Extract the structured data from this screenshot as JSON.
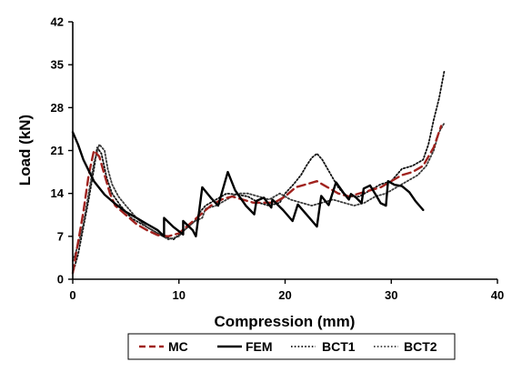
{
  "chart_data": {
    "type": "line",
    "title": "",
    "xlabel": "Compression (mm)",
    "ylabel": "Load (kN)",
    "xlim": [
      0,
      40
    ],
    "ylim": [
      0,
      42
    ],
    "xticks": [
      0,
      10,
      20,
      30,
      40
    ],
    "yticks": [
      0,
      7,
      14,
      21,
      28,
      35,
      42
    ],
    "grid": false,
    "legend": "bottom",
    "series": [
      {
        "name": "MC",
        "color": "#a0221e",
        "dash": "dashed",
        "points": [
          [
            0,
            1
          ],
          [
            0.5,
            6
          ],
          [
            1,
            11
          ],
          [
            1.5,
            17
          ],
          [
            2,
            21
          ],
          [
            2.5,
            20
          ],
          [
            3,
            17
          ],
          [
            3.5,
            14
          ],
          [
            4,
            12
          ],
          [
            5,
            10.5
          ],
          [
            6,
            9
          ],
          [
            7,
            8
          ],
          [
            8,
            7.2
          ],
          [
            9,
            7
          ],
          [
            10,
            7.5
          ],
          [
            11,
            9
          ],
          [
            12,
            10.5
          ],
          [
            13,
            12
          ],
          [
            14,
            13
          ],
          [
            15,
            13.5
          ],
          [
            16,
            13
          ],
          [
            17,
            12.5
          ],
          [
            18,
            12.5
          ],
          [
            19,
            12.5
          ],
          [
            20,
            13.5
          ],
          [
            21,
            15
          ],
          [
            22,
            15.5
          ],
          [
            23,
            16
          ],
          [
            24,
            15
          ],
          [
            25,
            14
          ],
          [
            26,
            13.5
          ],
          [
            27,
            14
          ],
          [
            28,
            14.5
          ],
          [
            29,
            15
          ],
          [
            30,
            16
          ],
          [
            31,
            17
          ],
          [
            32,
            17.5
          ],
          [
            33,
            18.5
          ],
          [
            34,
            21.5
          ],
          [
            34.7,
            25
          ]
        ]
      },
      {
        "name": "FEM",
        "color": "#000000",
        "dash": "solid",
        "points": [
          [
            0,
            24
          ],
          [
            0.5,
            22
          ],
          [
            1,
            19.5
          ],
          [
            2,
            16
          ],
          [
            3,
            13.8
          ],
          [
            4,
            12.3
          ],
          [
            5,
            11
          ],
          [
            6,
            10
          ],
          [
            7,
            9
          ],
          [
            8,
            8
          ],
          [
            8.6,
            7
          ],
          [
            8.6,
            10
          ],
          [
            9.5,
            8.5
          ],
          [
            10.4,
            7.3
          ],
          [
            10.4,
            9.5
          ],
          [
            11.3,
            8
          ],
          [
            11.6,
            7
          ],
          [
            12.2,
            15
          ],
          [
            13,
            13.3
          ],
          [
            13.7,
            12
          ],
          [
            14.6,
            17.5
          ],
          [
            15.3,
            14.5
          ],
          [
            16.3,
            12
          ],
          [
            17.1,
            10.6
          ],
          [
            17.3,
            12.8
          ],
          [
            18,
            13.3
          ],
          [
            18.7,
            11.7
          ],
          [
            18.8,
            13
          ],
          [
            19.8,
            11.3
          ],
          [
            20.7,
            9.5
          ],
          [
            21.2,
            12.2
          ],
          [
            22.2,
            10.2
          ],
          [
            23,
            8.6
          ],
          [
            23.4,
            13.6
          ],
          [
            24.1,
            12.1
          ],
          [
            24.8,
            15.8
          ],
          [
            25.5,
            14.1
          ],
          [
            26,
            13
          ],
          [
            26.2,
            13.9
          ],
          [
            26.7,
            13.3
          ],
          [
            27.2,
            12.4
          ],
          [
            27.4,
            14.8
          ],
          [
            28,
            15.3
          ],
          [
            28.6,
            13.6
          ],
          [
            29,
            12.4
          ],
          [
            29.5,
            12
          ],
          [
            29.7,
            16
          ],
          [
            30.3,
            15.4
          ],
          [
            31,
            15.2
          ],
          [
            31.7,
            14.2
          ],
          [
            32.3,
            12.7
          ],
          [
            33,
            11.3
          ]
        ]
      },
      {
        "name": "BCT1",
        "color": "#111111",
        "dash": "dotted",
        "points": [
          [
            0,
            1
          ],
          [
            0.5,
            4
          ],
          [
            1,
            8.5
          ],
          [
            1.5,
            13
          ],
          [
            2,
            18
          ],
          [
            2.3,
            21.5
          ],
          [
            2.7,
            20.5
          ],
          [
            3.2,
            16.5
          ],
          [
            3.7,
            14
          ],
          [
            4.5,
            12
          ],
          [
            5.5,
            10
          ],
          [
            6.5,
            9
          ],
          [
            7.5,
            8
          ],
          [
            8.5,
            7
          ],
          [
            9.5,
            6.5
          ],
          [
            10.5,
            8
          ],
          [
            11.5,
            9.5
          ],
          [
            12,
            11
          ],
          [
            12.5,
            12
          ],
          [
            13.5,
            13
          ],
          [
            14.5,
            14
          ],
          [
            15.5,
            13.8
          ],
          [
            16.5,
            13.5
          ],
          [
            17.5,
            12.5
          ],
          [
            18.5,
            12
          ],
          [
            19.5,
            12.5
          ],
          [
            20,
            14
          ],
          [
            20.8,
            15.5
          ],
          [
            21.5,
            17
          ],
          [
            22,
            18.5
          ],
          [
            22.5,
            19.8
          ],
          [
            23,
            20.5
          ],
          [
            23.5,
            19.5
          ],
          [
            24,
            18
          ],
          [
            24.5,
            16.5
          ],
          [
            25,
            15
          ],
          [
            25.5,
            14
          ],
          [
            26,
            13.5
          ],
          [
            27,
            13.5
          ],
          [
            28,
            14.5
          ],
          [
            29,
            15.5
          ],
          [
            30,
            16
          ],
          [
            31,
            18
          ],
          [
            32,
            18.5
          ],
          [
            33,
            19.5
          ],
          [
            33.5,
            22
          ],
          [
            34,
            26
          ],
          [
            34.5,
            29.5
          ],
          [
            35,
            34
          ]
        ]
      },
      {
        "name": "BCT2",
        "color": "#3a3a3a",
        "dash": "dotted",
        "points": [
          [
            0,
            3
          ],
          [
            0.5,
            5.5
          ],
          [
            1,
            9
          ],
          [
            1.5,
            14
          ],
          [
            2,
            19
          ],
          [
            2.5,
            22
          ],
          [
            3,
            21
          ],
          [
            3.3,
            18
          ],
          [
            3.7,
            15.5
          ],
          [
            4.3,
            13.5
          ],
          [
            5,
            12
          ],
          [
            6,
            10
          ],
          [
            7,
            8.5
          ],
          [
            8,
            7.5
          ],
          [
            9,
            6.5
          ],
          [
            10,
            7
          ],
          [
            10.5,
            8
          ],
          [
            11.5,
            9.5
          ],
          [
            12.2,
            10
          ],
          [
            12.5,
            11.5
          ],
          [
            13.5,
            12
          ],
          [
            14.5,
            13
          ],
          [
            15.5,
            14
          ],
          [
            16.5,
            14
          ],
          [
            17.5,
            13.5
          ],
          [
            18.5,
            13
          ],
          [
            19.5,
            14
          ],
          [
            20.5,
            13
          ],
          [
            21.5,
            12.5
          ],
          [
            22.5,
            12
          ],
          [
            23.5,
            12.5
          ],
          [
            24.5,
            13
          ],
          [
            25.5,
            12.5
          ],
          [
            26.5,
            12
          ],
          [
            27.5,
            12.5
          ],
          [
            28.5,
            13.5
          ],
          [
            29.5,
            14
          ],
          [
            30.5,
            15
          ],
          [
            31.5,
            16
          ],
          [
            32.5,
            17
          ],
          [
            33.3,
            18.5
          ],
          [
            34,
            21
          ],
          [
            34.5,
            24
          ],
          [
            35,
            25.5
          ]
        ]
      }
    ]
  }
}
